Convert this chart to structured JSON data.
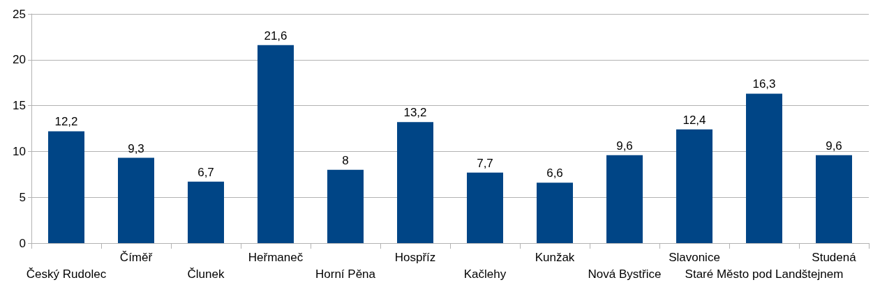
{
  "chart_data": {
    "type": "bar",
    "categories": [
      "Český Rudolec",
      "Číměř",
      "Člunek",
      "Heřmaneč",
      "Horní Pěna",
      "Hospříz",
      "Kačlehy",
      "Kunžak",
      "Nová Bystřice",
      "Slavonice",
      "Staré Město pod Landštejnem",
      "Studená"
    ],
    "values": [
      12.2,
      9.3,
      6.7,
      21.6,
      8,
      13.2,
      7.7,
      6.6,
      9.6,
      12.4,
      16.3,
      9.6
    ],
    "value_labels": [
      "12,2",
      "9,3",
      "6,7",
      "21,6",
      "8",
      "13,2",
      "7,7",
      "6,6",
      "9,6",
      "12,4",
      "16,3",
      "9,6"
    ],
    "color": "#004586",
    "ylim": [
      0,
      25
    ],
    "yticks": [
      0,
      5,
      10,
      15,
      20,
      25
    ],
    "grid": "y"
  }
}
